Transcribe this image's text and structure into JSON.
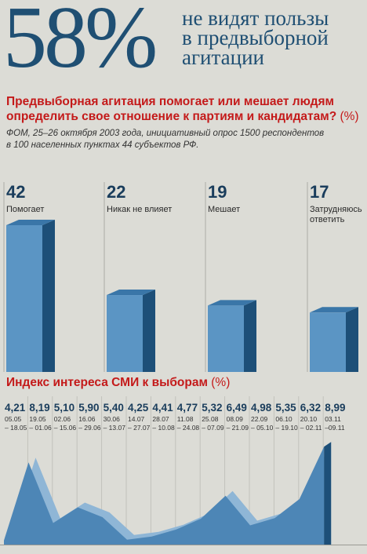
{
  "headline": {
    "big_number": "58%",
    "lines": [
      "не видят пользы",
      "в предвыборной",
      "агитации"
    ]
  },
  "question": {
    "text": "Предвыборная агитация помогает или мешает людям определить свое отношение к партиям и кандидатам?",
    "unit": "(%)"
  },
  "note": {
    "line1": "ФОМ, 25–26 октября 2003 года, инициативный опрос 1500 респондентов",
    "line2": "в 100 населенных пунктах 44 субъектов РФ."
  },
  "index_title": {
    "text": "Индекс интереса СМИ к выборам",
    "unit": "(%)"
  },
  "colors": {
    "accent_red": "#c41a1a",
    "bar_front": "#5b95c4",
    "bar_side": "#1d4f78",
    "area_light": "#8fb6d6",
    "area_dark": "#4d86b6"
  },
  "chart_data": [
    {
      "type": "bar",
      "categories": [
        "Помогает",
        "Никак не влияет",
        "Мешает",
        "Затрудняюсь ответить"
      ],
      "values": [
        42,
        22,
        19,
        17
      ],
      "value_labels": [
        "42",
        "22",
        "19",
        "17"
      ],
      "ylim": [
        0,
        50
      ]
    },
    {
      "type": "area",
      "x": [
        "05.05 – 18.05",
        "19.05 – 01.06",
        "02.06 – 15.06",
        "16.06 – 29.06",
        "30.06 – 13.07",
        "14.07 – 27.07",
        "28.07 – 10.08",
        "11.08 – 24.08",
        "25.08 – 07.09",
        "08.09 – 21.09",
        "22.09 – 05.10",
        "06.10 – 19.10",
        "20.10 – 02.11",
        "03.11 –09.11"
      ],
      "values": [
        4.21,
        8.19,
        5.1,
        5.9,
        5.4,
        4.25,
        4.41,
        4.77,
        5.32,
        6.49,
        4.98,
        5.35,
        6.32,
        8.99
      ],
      "value_labels": [
        "4,21",
        "8,19",
        "5,10",
        "5,90",
        "5,40",
        "4,25",
        "4,41",
        "4,77",
        "5,32",
        "6,49",
        "4,98",
        "5,35",
        "6,32",
        "8,99"
      ],
      "date_lines": [
        [
          "05.05",
          "– 18.05"
        ],
        [
          "19.05",
          "– 01.06"
        ],
        [
          "02.06",
          "– 15.06"
        ],
        [
          "16.06",
          "– 29.06"
        ],
        [
          "30.06",
          "– 13.07"
        ],
        [
          "14.07",
          "– 27.07"
        ],
        [
          "28.07",
          "– 10.08"
        ],
        [
          "11.08",
          "– 24.08"
        ],
        [
          "25.08",
          "– 07.09"
        ],
        [
          "08.09",
          "– 21.09"
        ],
        [
          "22.09",
          "– 05.10"
        ],
        [
          "06.10",
          "– 19.10"
        ],
        [
          "20.10",
          "– 02.11"
        ],
        [
          "03.11",
          "–09.11"
        ]
      ]
    }
  ]
}
